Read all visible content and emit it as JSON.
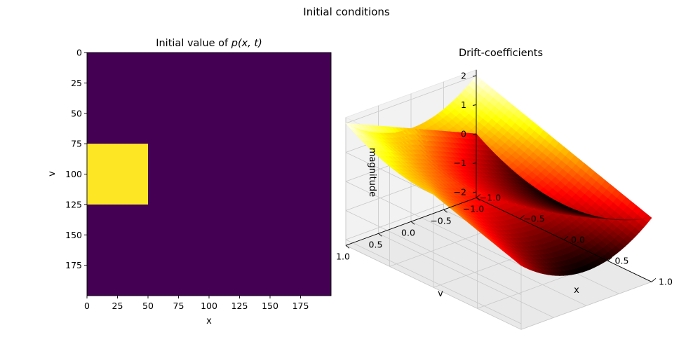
{
  "figure": {
    "suptitle": "Initial conditions"
  },
  "chart_data": [
    {
      "type": "heatmap",
      "title_prefix": "Initial value of ",
      "title_math": "p(x, t)",
      "xlabel": "x",
      "ylabel": "v",
      "xlim": [
        0,
        200
      ],
      "ylim": [
        200,
        0
      ],
      "x_ticks": [
        0,
        25,
        50,
        75,
        100,
        125,
        150,
        175
      ],
      "y_ticks": [
        0,
        25,
        50,
        75,
        100,
        125,
        150,
        175
      ],
      "colormap": "viridis",
      "background_value": 0,
      "background_color": "#440154",
      "regions": [
        {
          "x_range": [
            0,
            50
          ],
          "y_range": [
            75,
            125
          ],
          "value": 1,
          "color": "#fde725"
        }
      ]
    },
    {
      "type": "surface3d",
      "title": "Drift-coefficients",
      "xlabel": "x",
      "ylabel": "v",
      "zlabel": "magnitude",
      "xlim": [
        -1.0,
        1.0
      ],
      "ylim": [
        -1.0,
        1.0
      ],
      "zlim": [
        -2.2,
        2.2
      ],
      "x_ticks": [
        "−1.0",
        "−0.5",
        "0.0",
        "0.5",
        "1.0"
      ],
      "y_ticks": [
        "−1.0",
        "−0.5",
        "0.0",
        "0.5",
        "1.0"
      ],
      "z_ticks": [
        "−2",
        "−1",
        "0",
        "1",
        "2"
      ],
      "colormap": "hot",
      "grid": true,
      "surfaces": [
        {
          "formula": "v + x^2",
          "z_at_corners": {
            "x-1_v-1": 0,
            "x1_v-1": 0,
            "x-1_v1": 2,
            "x1_v1": 2
          }
        },
        {
          "formula": "-x + v^2",
          "z_at_corners": {
            "x-1_v-1": 2,
            "x1_v-1": 0,
            "x-1_v1": 2,
            "x1_v1": 0
          }
        }
      ]
    }
  ]
}
